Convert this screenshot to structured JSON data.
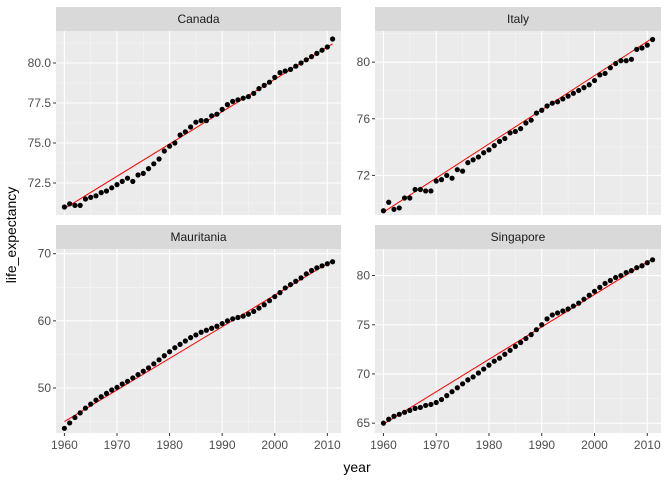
{
  "chart_data": {
    "type": "scatter",
    "xlabel": "year",
    "ylabel": "life_expectancy",
    "grid": true,
    "colors": {
      "panel_bg": "#ebebeb",
      "strip_bg": "#d9d9d9",
      "grid_major": "#ffffff",
      "grid_minor": "#f5f5f5",
      "point": "#000000",
      "fit_line": "#ff0000"
    },
    "x_range": [
      1958.4,
      2012.6
    ],
    "x_ticks": [
      1960,
      1970,
      1980,
      1990,
      2000,
      2010
    ],
    "x_tick_labels": [
      "1960",
      "1970",
      "1980",
      "1990",
      "2000",
      "2010"
    ],
    "facets": [
      {
        "name": "Canada",
        "ylim": [
          70.5,
          82.0
        ],
        "y_ticks": [
          72.5,
          75.0,
          77.5,
          80.0
        ],
        "y_tick_labels": [
          "72.5",
          "75.0",
          "77.5",
          "80.0"
        ],
        "fit": {
          "x": [
            1960,
            2011
          ],
          "y": [
            70.9,
            81.2
          ]
        },
        "series": [
          {
            "x": [
              1960,
              1961,
              1962,
              1963,
              1964,
              1965,
              1966,
              1967,
              1968,
              1969,
              1970,
              1971,
              1972,
              1973,
              1974,
              1975,
              1976,
              1977,
              1978,
              1979,
              1980,
              1981,
              1982,
              1983,
              1984,
              1985,
              1986,
              1987,
              1988,
              1989,
              1990,
              1991,
              1992,
              1993,
              1994,
              1995,
              1996,
              1997,
              1998,
              1999,
              2000,
              2001,
              2002,
              2003,
              2004,
              2005,
              2006,
              2007,
              2008,
              2009,
              2010,
              2011
            ],
            "y": [
              71.0,
              71.2,
              71.1,
              71.1,
              71.5,
              71.6,
              71.7,
              71.9,
              72.0,
              72.2,
              72.4,
              72.6,
              72.8,
              72.6,
              73.0,
              73.1,
              73.4,
              73.7,
              74.0,
              74.5,
              74.8,
              75.0,
              75.5,
              75.7,
              76.0,
              76.3,
              76.4,
              76.4,
              76.7,
              76.8,
              77.1,
              77.4,
              77.6,
              77.7,
              77.8,
              77.9,
              78.1,
              78.4,
              78.6,
              78.8,
              79.1,
              79.4,
              79.5,
              79.6,
              79.8,
              80.0,
              80.2,
              80.4,
              80.6,
              80.8,
              81.0,
              81.5
            ]
          }
        ]
      },
      {
        "name": "Italy",
        "ylim": [
          69.2,
          82.2
        ],
        "y_ticks": [
          72,
          76,
          80
        ],
        "y_tick_labels": [
          "72",
          "76",
          "80"
        ],
        "fit": {
          "x": [
            1960,
            2011
          ],
          "y": [
            69.4,
            81.7
          ]
        },
        "series": [
          {
            "x": [
              1960,
              1961,
              1962,
              1963,
              1964,
              1965,
              1966,
              1967,
              1968,
              1969,
              1970,
              1971,
              1972,
              1973,
              1974,
              1975,
              1976,
              1977,
              1978,
              1979,
              1980,
              1981,
              1982,
              1983,
              1984,
              1985,
              1986,
              1987,
              1988,
              1989,
              1990,
              1991,
              1992,
              1993,
              1994,
              1995,
              1996,
              1997,
              1998,
              1999,
              2000,
              2001,
              2002,
              2003,
              2004,
              2005,
              2006,
              2007,
              2008,
              2009,
              2010,
              2011
            ],
            "y": [
              69.5,
              70.1,
              69.6,
              69.7,
              70.4,
              70.4,
              71.0,
              71.0,
              70.9,
              70.9,
              71.6,
              71.7,
              72.0,
              71.8,
              72.4,
              72.3,
              72.9,
              73.1,
              73.3,
              73.6,
              73.8,
              74.1,
              74.4,
              74.6,
              75.0,
              75.1,
              75.3,
              75.7,
              75.9,
              76.4,
              76.6,
              76.9,
              77.1,
              77.2,
              77.4,
              77.6,
              77.8,
              78.0,
              78.2,
              78.4,
              78.7,
              79.1,
              79.2,
              79.6,
              79.9,
              80.1,
              80.1,
              80.2,
              80.9,
              81.0,
              81.2,
              81.6
            ]
          }
        ]
      },
      {
        "name": "Mauritania",
        "ylim": [
          43.3,
          70.7
        ],
        "y_ticks": [
          50,
          60,
          70
        ],
        "y_tick_labels": [
          "50",
          "60",
          "70"
        ],
        "fit": {
          "x": [
            1960,
            2011
          ],
          "y": [
            45.0,
            69.0
          ]
        },
        "series": [
          {
            "x": [
              1960,
              1961,
              1962,
              1963,
              1964,
              1965,
              1966,
              1967,
              1968,
              1969,
              1970,
              1971,
              1972,
              1973,
              1974,
              1975,
              1976,
              1977,
              1978,
              1979,
              1980,
              1981,
              1982,
              1983,
              1984,
              1985,
              1986,
              1987,
              1988,
              1989,
              1990,
              1991,
              1992,
              1993,
              1994,
              1995,
              1996,
              1997,
              1998,
              1999,
              2000,
              2001,
              2002,
              2003,
              2004,
              2005,
              2006,
              2007,
              2008,
              2009,
              2010,
              2011
            ],
            "y": [
              44.0,
              44.8,
              45.6,
              46.3,
              47.0,
              47.6,
              48.2,
              48.7,
              49.2,
              49.7,
              50.1,
              50.6,
              51.0,
              51.5,
              52.0,
              52.5,
              53.0,
              53.6,
              54.2,
              54.8,
              55.4,
              56.0,
              56.5,
              57.0,
              57.5,
              57.9,
              58.3,
              58.6,
              58.9,
              59.2,
              59.6,
              60.0,
              60.3,
              60.5,
              60.7,
              61.0,
              61.4,
              61.9,
              62.4,
              63.0,
              63.6,
              64.2,
              64.9,
              65.4,
              65.9,
              66.4,
              67.0,
              67.5,
              67.9,
              68.2,
              68.5,
              68.8
            ]
          }
        ]
      },
      {
        "name": "Singapore",
        "ylim": [
          64.0,
          82.7
        ],
        "y_ticks": [
          65,
          70,
          75,
          80
        ],
        "y_tick_labels": [
          "65",
          "70",
          "75",
          "80"
        ],
        "fit": {
          "x": [
            1960,
            2011
          ],
          "y": [
            64.9,
            81.7
          ]
        },
        "series": [
          {
            "x": [
              1960,
              1961,
              1962,
              1963,
              1964,
              1965,
              1966,
              1967,
              1968,
              1969,
              1970,
              1971,
              1972,
              1973,
              1974,
              1975,
              1976,
              1977,
              1978,
              1979,
              1980,
              1981,
              1982,
              1983,
              1984,
              1985,
              1986,
              1987,
              1988,
              1989,
              1990,
              1991,
              1992,
              1993,
              1994,
              1995,
              1996,
              1997,
              1998,
              1999,
              2000,
              2001,
              2002,
              2003,
              2004,
              2005,
              2006,
              2007,
              2008,
              2009,
              2010,
              2011
            ],
            "y": [
              65.0,
              65.4,
              65.7,
              65.9,
              66.1,
              66.3,
              66.5,
              66.6,
              66.8,
              66.9,
              67.1,
              67.4,
              67.8,
              68.2,
              68.6,
              69.0,
              69.4,
              69.7,
              70.1,
              70.5,
              70.9,
              71.3,
              71.6,
              72.0,
              72.4,
              72.8,
              73.2,
              73.6,
              74.0,
              74.5,
              75.0,
              75.6,
              76.0,
              76.2,
              76.4,
              76.6,
              76.9,
              77.2,
              77.6,
              78.0,
              78.4,
              78.8,
              79.2,
              79.5,
              79.8,
              80.0,
              80.3,
              80.5,
              80.8,
              81.0,
              81.3,
              81.6
            ]
          }
        ]
      }
    ]
  }
}
